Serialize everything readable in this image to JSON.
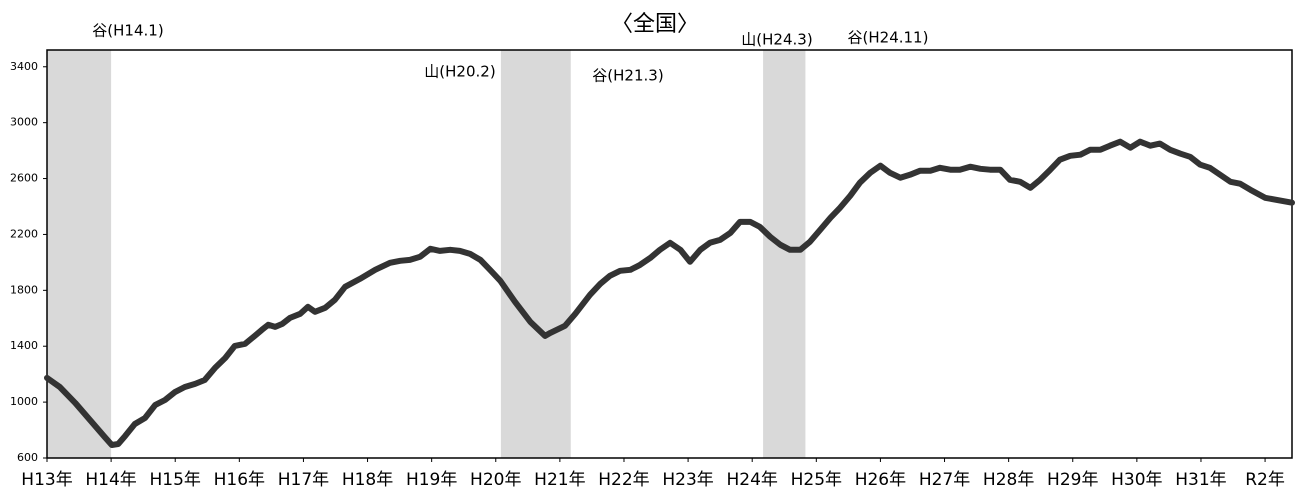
{
  "chart_data": {
    "type": "line",
    "title": "〈全国〉",
    "x": [
      0,
      0.2,
      0.44,
      0.67,
      0.9,
      1.01,
      1.11,
      1.22,
      1.37,
      1.53,
      1.69,
      1.84,
      2.0,
      2.15,
      2.31,
      2.46,
      2.62,
      2.78,
      2.93,
      3.09,
      3.24,
      3.35,
      3.45,
      3.56,
      3.67,
      3.79,
      3.95,
      4.07,
      4.18,
      4.34,
      4.49,
      4.65,
      4.88,
      5.12,
      5.35,
      5.51,
      5.66,
      5.82,
      5.98,
      6.13,
      6.29,
      6.44,
      6.6,
      6.76,
      6.91,
      7.07,
      7.3,
      7.54,
      7.77,
      7.85,
      8.08,
      8.24,
      8.47,
      8.63,
      8.78,
      8.94,
      9.1,
      9.25,
      9.41,
      9.56,
      9.72,
      9.88,
      10.03,
      10.19,
      10.34,
      10.5,
      10.66,
      10.81,
      10.97,
      11.12,
      11.28,
      11.44,
      11.59,
      11.75,
      11.9,
      12.06,
      12.22,
      12.37,
      12.53,
      12.68,
      12.84,
      13.0,
      13.15,
      13.31,
      13.46,
      13.62,
      13.78,
      13.93,
      14.09,
      14.24,
      14.4,
      14.56,
      14.71,
      14.87,
      15.02,
      15.18,
      15.34,
      15.49,
      15.65,
      15.8,
      15.96,
      16.12,
      16.27,
      16.43,
      16.58,
      16.74,
      16.9,
      17.05,
      17.21,
      17.36,
      17.52,
      17.68,
      17.83,
      17.99,
      18.14,
      18.3,
      18.46,
      18.61,
      18.77,
      19.0,
      19.42
    ],
    "values": [
      1173,
      1108,
      994,
      872,
      750,
      693,
      700,
      758,
      843,
      887,
      980,
      1015,
      1073,
      1108,
      1130,
      1158,
      1245,
      1316,
      1402,
      1417,
      1474,
      1517,
      1553,
      1538,
      1560,
      1603,
      1632,
      1682,
      1646,
      1675,
      1732,
      1825,
      1882,
      1947,
      1997,
      2011,
      2018,
      2040,
      2097,
      2082,
      2090,
      2082,
      2061,
      2018,
      1947,
      1868,
      1718,
      1574,
      1474,
      1495,
      1546,
      1632,
      1768,
      1847,
      1904,
      1940,
      1947,
      1982,
      2032,
      2090,
      2140,
      2090,
      2004,
      2090,
      2140,
      2161,
      2211,
      2290,
      2290,
      2254,
      2183,
      2126,
      2090,
      2090,
      2147,
      2233,
      2319,
      2391,
      2477,
      2570,
      2641,
      2692,
      2641,
      2606,
      2627,
      2656,
      2656,
      2677,
      2663,
      2663,
      2685,
      2670,
      2663,
      2663,
      2591,
      2577,
      2534,
      2591,
      2663,
      2735,
      2763,
      2771,
      2806,
      2806,
      2835,
      2864,
      2821,
      2864,
      2835,
      2850,
      2806,
      2778,
      2756,
      2699,
      2677,
      2627,
      2577,
      2563,
      2520,
      2462,
      2427
    ],
    "color": "#333333",
    "xlim": [
      0,
      19.42
    ],
    "xticks": [
      {
        "value": 0,
        "label": "H13年"
      },
      {
        "value": 1,
        "label": "H14年"
      },
      {
        "value": 2,
        "label": "H15年"
      },
      {
        "value": 3,
        "label": "H16年"
      },
      {
        "value": 4,
        "label": "H17年"
      },
      {
        "value": 5,
        "label": "H18年"
      },
      {
        "value": 6,
        "label": "H19年"
      },
      {
        "value": 7,
        "label": "H20年"
      },
      {
        "value": 8,
        "label": "H21年"
      },
      {
        "value": 9,
        "label": "H22年"
      },
      {
        "value": 10,
        "label": "H23年"
      },
      {
        "value": 11,
        "label": "H24年"
      },
      {
        "value": 12,
        "label": "H25年"
      },
      {
        "value": 13,
        "label": "H26年"
      },
      {
        "value": 14,
        "label": "H27年"
      },
      {
        "value": 15,
        "label": "H28年"
      },
      {
        "value": 16,
        "label": "H29年"
      },
      {
        "value": 17,
        "label": "H30年"
      },
      {
        "value": 18,
        "label": "H31年"
      },
      {
        "value": 19,
        "label": "R2年"
      }
    ],
    "ylim": [
      600,
      3520
    ],
    "yticks": [
      600,
      1000,
      1400,
      1800,
      2200,
      2600,
      3000,
      3400
    ],
    "shaded_periods": [
      [
        0,
        1.0
      ],
      [
        7.08,
        8.17
      ],
      [
        11.17,
        11.83
      ]
    ],
    "shade_color": "#d9d9d9",
    "annotations": [
      "谷(H14.1)",
      "山(H20.2)",
      "谷(H21.3)",
      "山(H24.3)",
      "谷(H24.11)"
    ]
  }
}
